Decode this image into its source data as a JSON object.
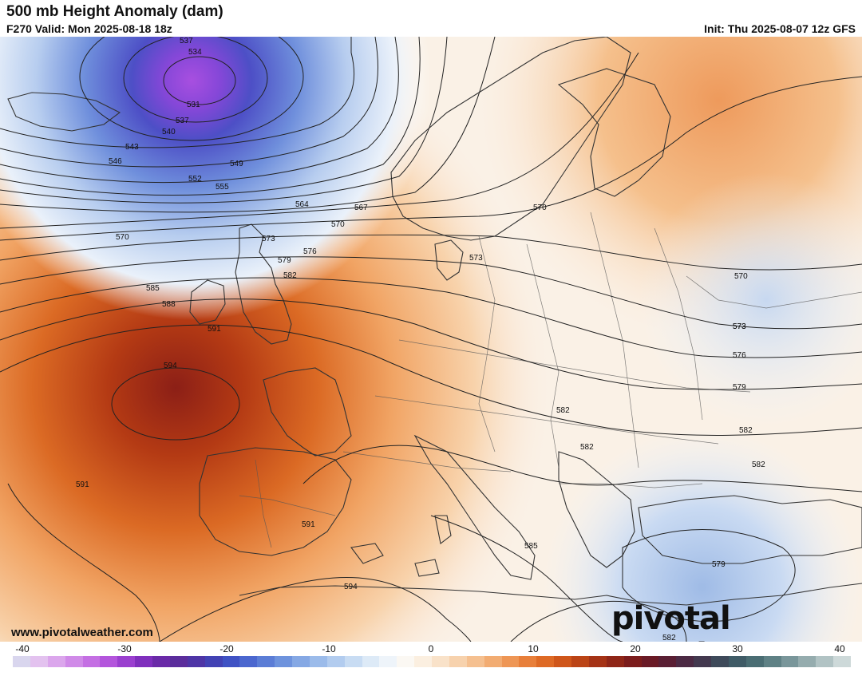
{
  "header": {
    "title": "500 mb Height Anomaly (dam)",
    "subtitle": "F270 Valid: Mon 2025-08-18 18z",
    "init": "Init: Thu 2025-08-07 12z GFS"
  },
  "footer": {
    "website": "www.pivotalweather.com",
    "brand": "pivotal weather"
  },
  "colorbar": {
    "ticks": [
      "-40",
      "-30",
      "-20",
      "-10",
      "0",
      "10",
      "20",
      "30",
      "40"
    ],
    "colors": [
      "#d9d6ee",
      "#e3c2ef",
      "#dba6ec",
      "#d08ae8",
      "#c46fe3",
      "#b355dc",
      "#9a3fcf",
      "#7f2fbd",
      "#6a2aa8",
      "#5b2d9c",
      "#4e35a6",
      "#4242b4",
      "#3f52c4",
      "#4b67cf",
      "#5b7dd6",
      "#6e93dd",
      "#85a8e4",
      "#9bbbea",
      "#b2ccef",
      "#c8dcf3",
      "#ddeaf7",
      "#eef4fa",
      "#fbf8f3",
      "#fbefe0",
      "#f9e2c9",
      "#f7d2ad",
      "#f5c090",
      "#f2ac72",
      "#ee9655",
      "#e87f3a",
      "#de6a25",
      "#cf561a",
      "#bb4416",
      "#a53316",
      "#8f2618",
      "#7b1c1c",
      "#6a1a26",
      "#5a1f34",
      "#4c2a44",
      "#43394f",
      "#3e4a5a",
      "#3f5b66",
      "#4a6d73",
      "#5f8185",
      "#79969a",
      "#95acae",
      "#b1c3c4",
      "#cdd9d9"
    ]
  },
  "map": {
    "contour_labels": [
      "537",
      "534",
      "531",
      "537",
      "540",
      "543",
      "546",
      "549",
      "552",
      "555",
      "564",
      "567",
      "570",
      "570",
      "570",
      "573",
      "573",
      "576",
      "579",
      "582",
      "585",
      "588",
      "591",
      "594",
      "573",
      "570",
      "573",
      "576",
      "579",
      "582",
      "582",
      "582",
      "579",
      "585",
      "591",
      "591",
      "594",
      "582"
    ]
  }
}
